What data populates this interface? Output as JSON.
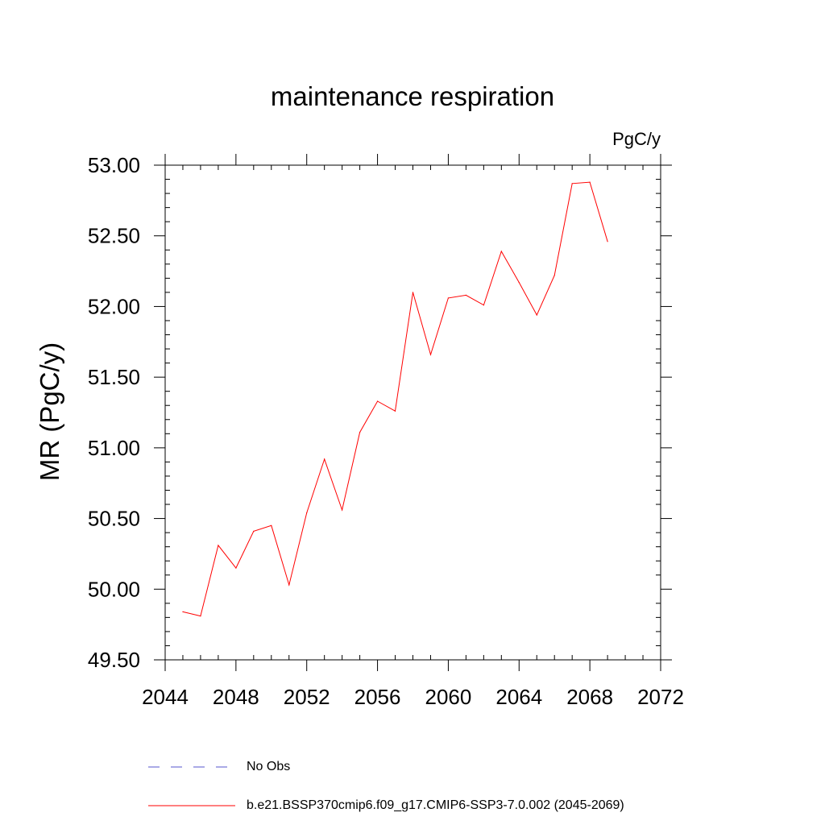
{
  "chart_data": {
    "type": "line",
    "title": "maintenance respiration",
    "units_label": "PgC/y",
    "ylabel": "MR  (PgC/y)",
    "xlabel": "",
    "xlim": [
      2044,
      2072
    ],
    "ylim": [
      49.5,
      53.0
    ],
    "x_ticks": [
      2044,
      2048,
      2052,
      2056,
      2060,
      2064,
      2068,
      2072
    ],
    "x_tick_labels": [
      "2044",
      "2048",
      "2052",
      "2056",
      "2060",
      "2064",
      "2068",
      "2072"
    ],
    "y_ticks": [
      49.5,
      50.0,
      50.5,
      51.0,
      51.5,
      52.0,
      52.5,
      53.0
    ],
    "y_tick_labels": [
      "49.50",
      "50.00",
      "50.50",
      "51.00",
      "51.50",
      "52.00",
      "52.50",
      "53.00"
    ],
    "grid": false,
    "legend_position": "bottom",
    "series": [
      {
        "name": "b.e21.BSSP370cmip6.f09_g17.CMIP6-SSP3-7.0.002 (2045-2069)",
        "color": "#ff0000",
        "dash": "solid",
        "x": [
          2045,
          2046,
          2047,
          2048,
          2049,
          2050,
          2051,
          2052,
          2053,
          2054,
          2055,
          2056,
          2057,
          2058,
          2059,
          2060,
          2061,
          2062,
          2063,
          2064,
          2065,
          2066,
          2067,
          2068,
          2069
        ],
        "y": [
          49.84,
          49.81,
          50.31,
          50.15,
          50.41,
          50.45,
          50.03,
          50.54,
          50.92,
          50.56,
          51.11,
          51.33,
          51.26,
          52.1,
          51.66,
          52.06,
          52.08,
          52.01,
          52.39,
          52.17,
          51.94,
          52.22,
          52.87,
          52.88,
          52.46
        ]
      }
    ],
    "legend_entries": [
      {
        "label": "No Obs",
        "color": "#5555cc",
        "dash": "dashed"
      },
      {
        "label": "b.e21.BSSP370cmip6.f09_g17.CMIP6-SSP3-7.0.002 (2045-2069)",
        "color": "#ff0000",
        "dash": "solid"
      }
    ]
  }
}
